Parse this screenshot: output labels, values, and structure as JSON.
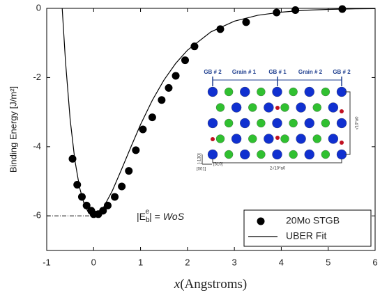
{
  "chart_data": {
    "type": "scatter",
    "y_label": "Binding Energy [J/m²]",
    "x_label": {
      "variable": "x",
      "text": "(Angstroms)"
    },
    "xlim": [
      -1,
      6
    ],
    "ylim": [
      -7,
      0
    ],
    "xticks": [
      -1,
      0,
      1,
      2,
      3,
      4,
      5,
      6
    ],
    "yticks": [
      0,
      -2,
      -4,
      -6
    ],
    "series": [
      {
        "name": "20Mo STGB",
        "kind": "points",
        "color": "#000000",
        "x": [
          -0.45,
          -0.35,
          -0.25,
          -0.15,
          -0.05,
          0.0,
          0.1,
          0.2,
          0.3,
          0.45,
          0.6,
          0.75,
          0.9,
          1.05,
          1.25,
          1.45,
          1.6,
          1.75,
          1.95,
          2.15,
          2.7,
          3.25,
          3.9,
          4.3,
          5.3
        ],
        "values": [
          -4.35,
          -5.1,
          -5.45,
          -5.7,
          -5.85,
          -5.95,
          -5.95,
          -5.85,
          -5.7,
          -5.45,
          -5.15,
          -4.7,
          -4.1,
          -3.5,
          -3.15,
          -2.65,
          -2.3,
          -1.95,
          -1.5,
          -1.1,
          -0.6,
          -0.4,
          -0.12,
          -0.05,
          -0.02
        ]
      },
      {
        "name": "UBER Fit",
        "kind": "line",
        "color": "#000000",
        "x": [
          -0.67,
          -0.6,
          -0.5,
          -0.4,
          -0.3,
          -0.2,
          -0.1,
          0,
          0.2,
          0.4,
          0.6,
          0.8,
          1.0,
          1.25,
          1.5,
          1.75,
          2,
          2.5,
          3,
          3.5,
          4,
          4.5,
          5,
          5.5,
          6
        ],
        "values": [
          0,
          -1.53,
          -3.22,
          -4.39,
          -5.18,
          -5.67,
          -5.93,
          -6,
          -5.78,
          -5.27,
          -4.64,
          -3.99,
          -3.36,
          -2.66,
          -2.07,
          -1.59,
          -1.21,
          -0.68,
          -0.37,
          -0.2,
          -0.11,
          -0.056,
          -0.03,
          -0.015,
          -0.008
        ]
      }
    ],
    "legend": "lower right",
    "reference_line": {
      "y": -6,
      "x_end": 0
    },
    "annotation": {
      "left": "|E",
      "sub": "b",
      "sup": "e",
      "mid": "| = ",
      "right": "WoS"
    },
    "inset": {
      "top_labels": [
        "GB # 2",
        "Grain # 1",
        "GB # 1",
        "Grain # 2",
        "GB # 2"
      ],
      "height_label": "√10*a0",
      "width_label": "2√10*a0",
      "axis_labels": [
        "[-130]",
        "[310]",
        "[001]"
      ]
    }
  }
}
